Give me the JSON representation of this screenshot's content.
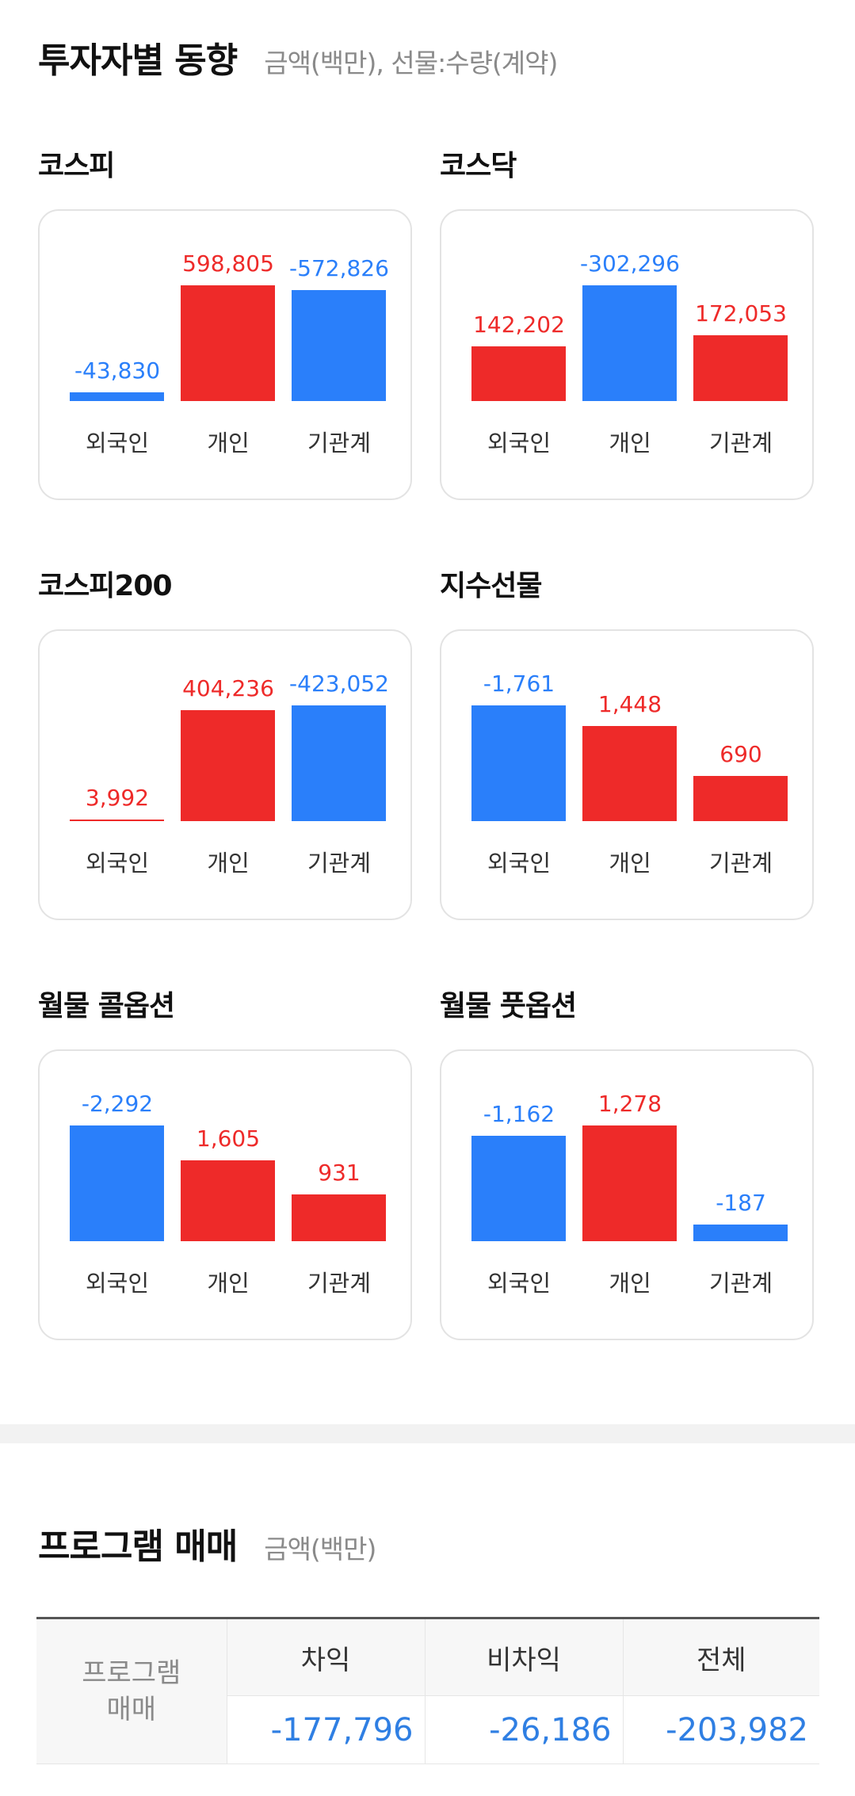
{
  "investor": {
    "title": "투자자별 동향",
    "subtitle": "금액(백만), 선물:수량(계약)",
    "colors": {
      "positive": "#ee2a29",
      "negative": "#2a7ffa"
    },
    "markets": [
      {
        "name": "코스피",
        "items": [
          {
            "label": "외국인",
            "value": -43830,
            "display": "-43,830"
          },
          {
            "label": "개인",
            "value": 598805,
            "display": "598,805"
          },
          {
            "label": "기관계",
            "value": -572826,
            "display": "-572,826"
          }
        ]
      },
      {
        "name": "코스닥",
        "items": [
          {
            "label": "외국인",
            "value": 142202,
            "display": "142,202"
          },
          {
            "label": "개인",
            "value": -302296,
            "display": "-302,296"
          },
          {
            "label": "기관계",
            "value": 172053,
            "display": "172,053"
          }
        ]
      },
      {
        "name": "코스피200",
        "items": [
          {
            "label": "외국인",
            "value": 3992,
            "display": "3,992"
          },
          {
            "label": "개인",
            "value": 404236,
            "display": "404,236"
          },
          {
            "label": "기관계",
            "value": -423052,
            "display": "-423,052"
          }
        ]
      },
      {
        "name": "지수선물",
        "items": [
          {
            "label": "외국인",
            "value": -1761,
            "display": "-1,761"
          },
          {
            "label": "개인",
            "value": 1448,
            "display": "1,448"
          },
          {
            "label": "기관계",
            "value": 690,
            "display": "690"
          }
        ]
      },
      {
        "name": "월물 콜옵션",
        "items": [
          {
            "label": "외국인",
            "value": -2292,
            "display": "-2,292"
          },
          {
            "label": "개인",
            "value": 1605,
            "display": "1,605"
          },
          {
            "label": "기관계",
            "value": 931,
            "display": "931"
          }
        ]
      },
      {
        "name": "월물 풋옵션",
        "items": [
          {
            "label": "외국인",
            "value": -1162,
            "display": "-1,162"
          },
          {
            "label": "개인",
            "value": 1278,
            "display": "1,278"
          },
          {
            "label": "기관계",
            "value": -187,
            "display": "-187"
          }
        ]
      }
    ]
  },
  "program": {
    "title": "프로그램 매매",
    "subtitle": "금액(백만)",
    "row_header": "프로그램\n매매",
    "columns": [
      "차익",
      "비차익",
      "전체"
    ],
    "values": [
      "-177,796",
      "-26,186",
      "-203,982"
    ]
  }
}
